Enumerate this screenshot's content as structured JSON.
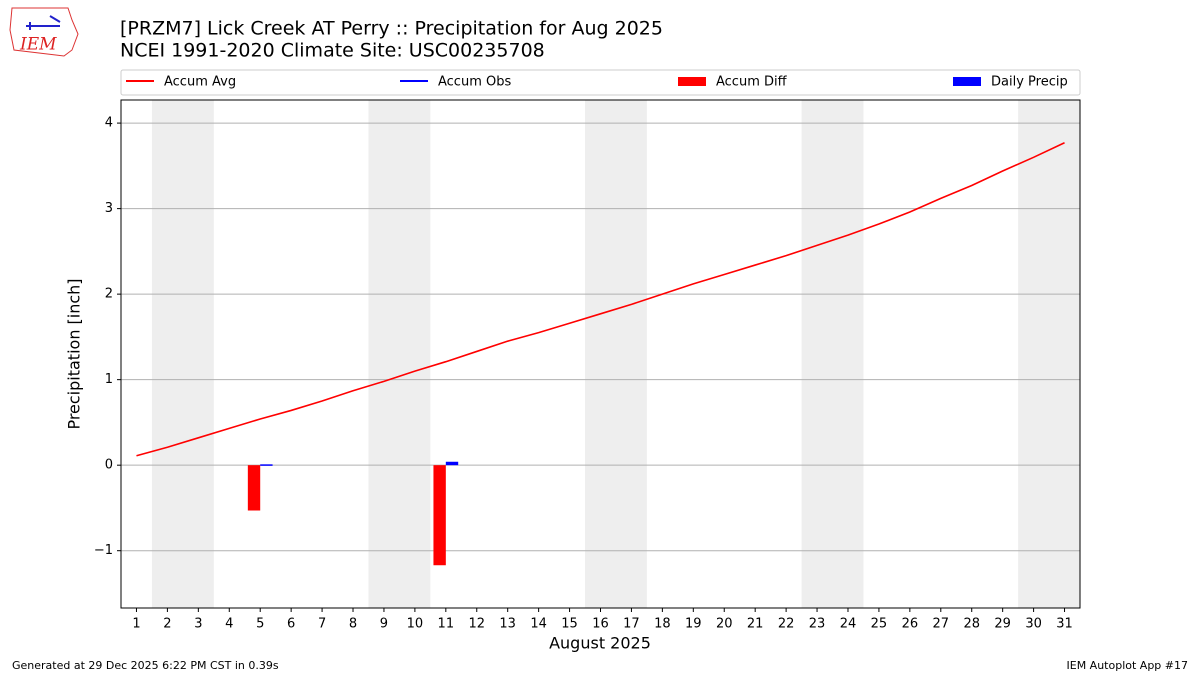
{
  "logo": "IEM",
  "footer": {
    "left": "Generated at 29 Dec 2025 6:22 PM CST in 0.39s",
    "right": "IEM Autoplot App #17"
  },
  "chart_data": {
    "type": "line",
    "title": "[PRZM7] Lick Creek  AT Perry :: Precipitation for Aug 2025",
    "subtitle": "NCEI 1991-2020 Climate Site: USC00235708",
    "xlabel": "August 2025",
    "ylabel": "Precipitation [inch]",
    "x": [
      1,
      2,
      3,
      4,
      5,
      6,
      7,
      8,
      9,
      10,
      11,
      12,
      13,
      14,
      15,
      16,
      17,
      18,
      19,
      20,
      21,
      22,
      23,
      24,
      25,
      26,
      27,
      28,
      29,
      30,
      31
    ],
    "xlim": [
      0.5,
      31.5
    ],
    "xticks": [
      1,
      2,
      3,
      4,
      5,
      6,
      7,
      8,
      9,
      10,
      11,
      12,
      13,
      14,
      15,
      16,
      17,
      18,
      19,
      20,
      21,
      22,
      23,
      24,
      25,
      26,
      27,
      28,
      29,
      30,
      31
    ],
    "ylim": [
      -1.67,
      4.27
    ],
    "yticks": [
      {
        "value": -1,
        "label": "−1"
      },
      0,
      1,
      2,
      3,
      4
    ],
    "grid": true,
    "shaded_spans": [
      [
        1.5,
        3.5
      ],
      [
        8.5,
        10.5
      ],
      [
        15.5,
        17.5
      ],
      [
        22.5,
        24.5
      ],
      [
        29.5,
        31.5
      ]
    ],
    "shade_color": "#eeeeee",
    "series": [
      {
        "name": "Accum Avg",
        "kind": "line",
        "color": "#ff0000",
        "values": [
          0.11,
          0.21,
          0.32,
          0.43,
          0.54,
          0.64,
          0.75,
          0.87,
          0.98,
          1.1,
          1.21,
          1.33,
          1.45,
          1.55,
          1.66,
          1.77,
          1.88,
          2.0,
          2.12,
          2.23,
          2.34,
          2.45,
          2.57,
          2.69,
          2.82,
          2.96,
          3.12,
          3.27,
          3.44,
          3.6,
          3.77
        ]
      },
      {
        "name": "Accum Obs",
        "kind": "line",
        "color": "#0000ff",
        "values": [
          null,
          null,
          null,
          null,
          0.01,
          null,
          null,
          null,
          null,
          null,
          0.05,
          null,
          null,
          null,
          null,
          null,
          null,
          null,
          null,
          null,
          null,
          null,
          null,
          null,
          null,
          null,
          null,
          null,
          null,
          null,
          null
        ]
      },
      {
        "name": "Accum Diff",
        "kind": "bar",
        "color": "#ff0000",
        "values": [
          null,
          null,
          null,
          null,
          -0.53,
          null,
          null,
          null,
          null,
          null,
          -1.17,
          null,
          null,
          null,
          null,
          null,
          null,
          null,
          null,
          null,
          null,
          null,
          null,
          null,
          null,
          null,
          null,
          null,
          null,
          null,
          null
        ]
      },
      {
        "name": "Daily Precip",
        "kind": "bar",
        "color": "#0000ff",
        "values": [
          null,
          null,
          null,
          null,
          0.01,
          null,
          null,
          null,
          null,
          null,
          0.04,
          null,
          null,
          null,
          null,
          null,
          null,
          null,
          null,
          null,
          null,
          null,
          null,
          null,
          null,
          null,
          null,
          null,
          null,
          null,
          null
        ]
      }
    ]
  }
}
